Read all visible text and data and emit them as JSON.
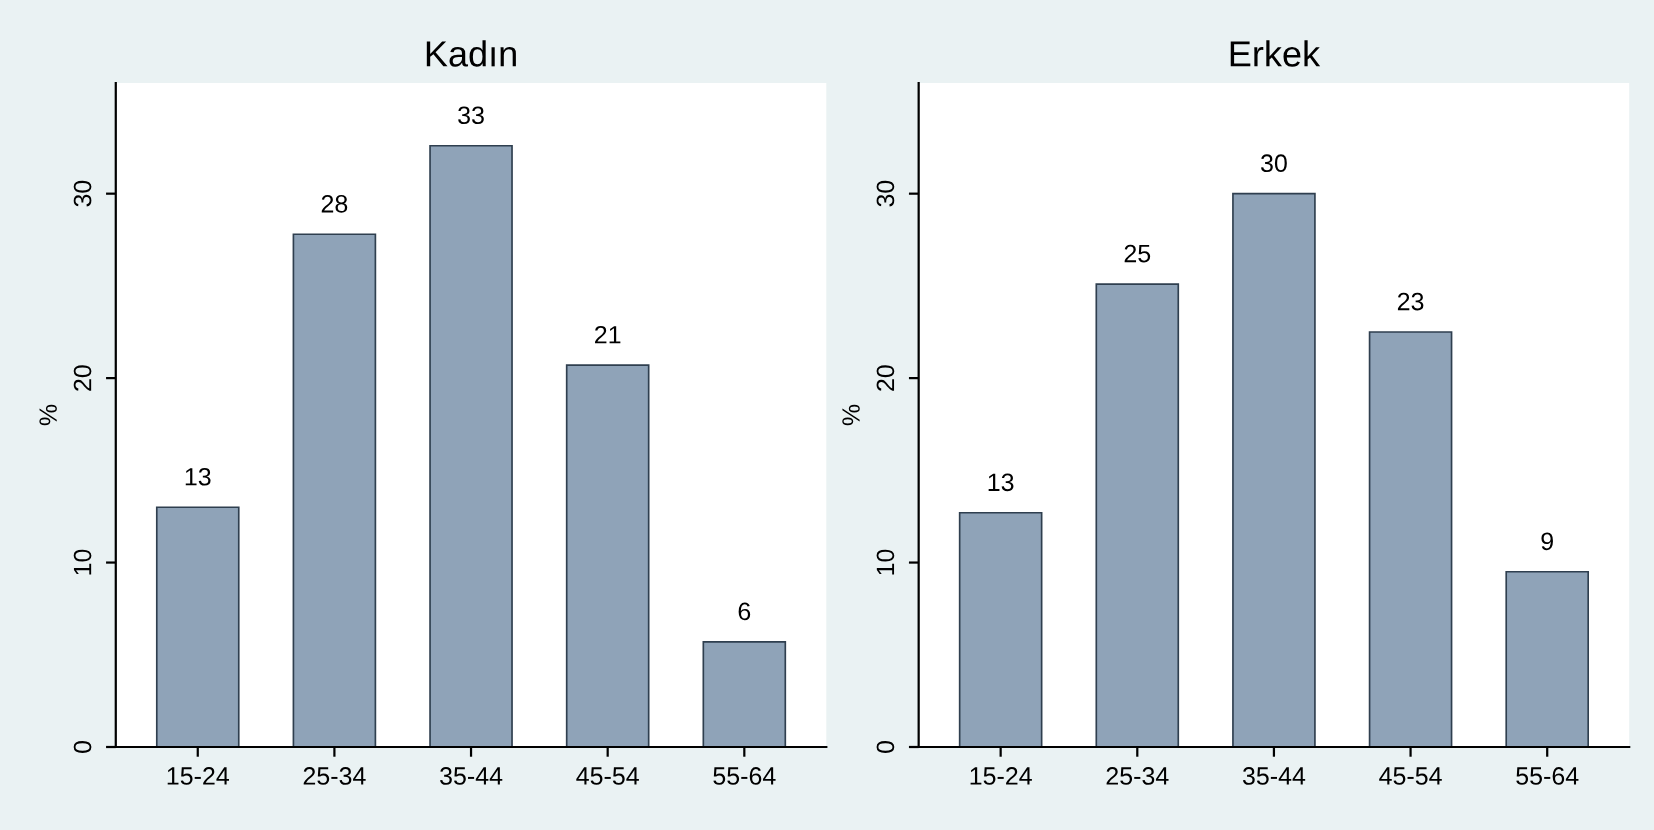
{
  "chart_data": [
    {
      "type": "bar",
      "title": "Kadın",
      "ylabel": "%",
      "categories": [
        "15-24",
        "25-34",
        "35-44",
        "45-54",
        "55-64"
      ],
      "values": [
        13.0,
        27.8,
        32.6,
        20.7,
        5.7
      ],
      "value_labels": [
        "13",
        "28",
        "33",
        "21",
        "6"
      ],
      "color": "#8fa3b8",
      "ylim": [
        0,
        36
      ],
      "yticks": [
        0,
        10,
        20,
        30
      ],
      "grid": false
    },
    {
      "type": "bar",
      "title": "Erkek",
      "ylabel": "%",
      "categories": [
        "15-24",
        "25-34",
        "35-44",
        "45-54",
        "55-64"
      ],
      "values": [
        12.7,
        25.1,
        30.0,
        22.5,
        9.5
      ],
      "value_labels": [
        "13",
        "25",
        "30",
        "23",
        "9"
      ],
      "color": "#8fa3b8",
      "ylim": [
        0,
        36
      ],
      "yticks": [
        0,
        10,
        20,
        30
      ],
      "grid": false
    }
  ]
}
